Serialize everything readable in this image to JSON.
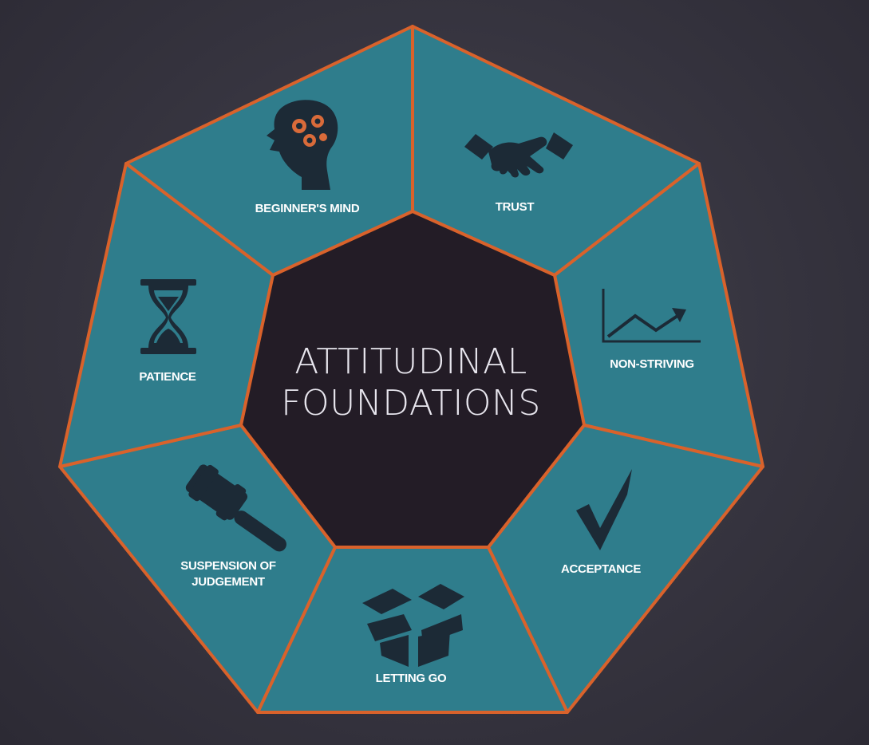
{
  "diagram": {
    "center": {
      "line1": "ATTITUDINAL",
      "line2": "FOUNDATIONS"
    },
    "segments": [
      {
        "label": "BEGINNER'S MIND",
        "icon": "head-gears-icon"
      },
      {
        "label": "TRUST",
        "icon": "handshake-icon"
      },
      {
        "label": "NON-STRIVING",
        "icon": "trend-chart-icon"
      },
      {
        "label": "ACCEPTANCE",
        "icon": "checkmark-icon"
      },
      {
        "label": "LETTING GO",
        "icon": "open-box-icon"
      },
      {
        "label": "SUSPENSION OF",
        "label2": "JUDGEMENT",
        "icon": "gavel-icon"
      },
      {
        "label": "PATIENCE",
        "icon": "hourglass-icon"
      }
    ],
    "colors": {
      "segment_fill": "#2f7d8c",
      "border": "#d9622b",
      "center_fill": "#231c26",
      "icon": "#1c2a36"
    }
  }
}
